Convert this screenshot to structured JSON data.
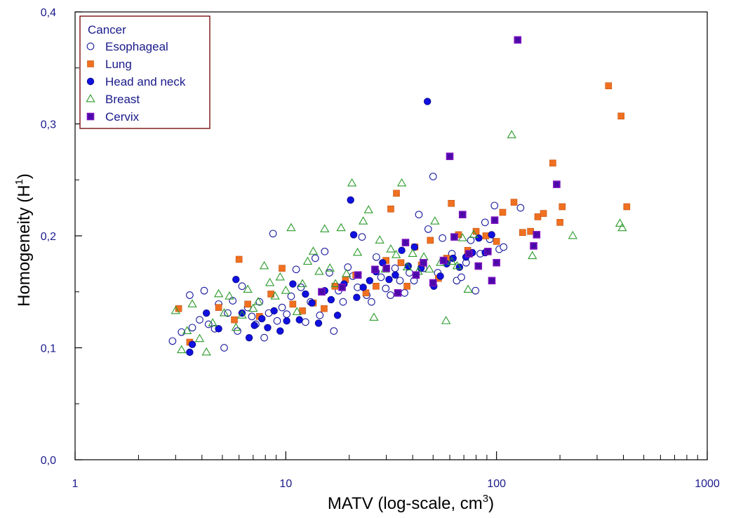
{
  "chart_data": {
    "type": "scatter",
    "xlabel": "MATV (log-scale, cm",
    "xlabel_sup": "3",
    "xlabel_end": ")",
    "ylabel": "Homogeneity (H",
    "ylabel_sup": "1",
    "ylabel_end": ")",
    "x_scale": "log",
    "xlim": [
      1,
      1000
    ],
    "ylim": [
      0,
      0.4
    ],
    "x_ticks": [
      {
        "value": 1,
        "label": "1"
      },
      {
        "value": 10,
        "label": "10"
      },
      {
        "value": 100,
        "label": "100"
      },
      {
        "value": 1000,
        "label": "1000"
      }
    ],
    "y_ticks": [
      {
        "value": 0.0,
        "label": "0,0"
      },
      {
        "value": 0.1,
        "label": "0,1"
      },
      {
        "value": 0.2,
        "label": "0,2"
      },
      {
        "value": 0.3,
        "label": "0,3"
      },
      {
        "value": 0.4,
        "label": "0,4"
      }
    ],
    "grid": false,
    "legend": {
      "title": "Cancer",
      "placement": "top-left"
    },
    "series": [
      {
        "name": "Esophageal",
        "marker": "open-circle",
        "color": "#1a1aa0",
        "points": [
          [
            2.9,
            0.106
          ],
          [
            3.2,
            0.114
          ],
          [
            3.5,
            0.147
          ],
          [
            3.6,
            0.118
          ],
          [
            3.9,
            0.125
          ],
          [
            4.1,
            0.151
          ],
          [
            4.3,
            0.121
          ],
          [
            4.6,
            0.117
          ],
          [
            4.8,
            0.139
          ],
          [
            5.1,
            0.1
          ],
          [
            5.3,
            0.131
          ],
          [
            5.6,
            0.142
          ],
          [
            5.9,
            0.115
          ],
          [
            6.2,
            0.155
          ],
          [
            6.6,
            0.136
          ],
          [
            6.9,
            0.128
          ],
          [
            7.2,
            0.121
          ],
          [
            7.5,
            0.141
          ],
          [
            7.9,
            0.109
          ],
          [
            8.3,
            0.131
          ],
          [
            8.7,
            0.202
          ],
          [
            9.1,
            0.124
          ],
          [
            9.6,
            0.136
          ],
          [
            10.1,
            0.13
          ],
          [
            10.6,
            0.146
          ],
          [
            11.2,
            0.17
          ],
          [
            11.8,
            0.154
          ],
          [
            12.4,
            0.123
          ],
          [
            13.1,
            0.141
          ],
          [
            13.8,
            0.18
          ],
          [
            14.5,
            0.129
          ],
          [
            15.3,
            0.186
          ],
          [
            16.1,
            0.167
          ],
          [
            16.9,
            0.115
          ],
          [
            17.8,
            0.151
          ],
          [
            18.7,
            0.141
          ],
          [
            19.7,
            0.172
          ],
          [
            20.8,
            0.164
          ],
          [
            21.9,
            0.154
          ],
          [
            23.0,
            0.199
          ],
          [
            24.2,
            0.147
          ],
          [
            25.5,
            0.141
          ],
          [
            26.9,
            0.181
          ],
          [
            28.3,
            0.163
          ],
          [
            29.8,
            0.153
          ],
          [
            31.4,
            0.147
          ],
          [
            33.0,
            0.171
          ],
          [
            34.8,
            0.16
          ],
          [
            36.6,
            0.149
          ],
          [
            38.6,
            0.167
          ],
          [
            40.6,
            0.16
          ],
          [
            42.8,
            0.219
          ],
          [
            45.0,
            0.171
          ],
          [
            47.4,
            0.206
          ],
          [
            50.0,
            0.253
          ],
          [
            52.6,
            0.167
          ],
          [
            55.4,
            0.198
          ],
          [
            58.3,
            0.177
          ],
          [
            61.4,
            0.184
          ],
          [
            64.7,
            0.16
          ],
          [
            68.1,
            0.163
          ],
          [
            71.7,
            0.176
          ],
          [
            75.5,
            0.196
          ],
          [
            79.5,
            0.151
          ],
          [
            83.7,
            0.184
          ],
          [
            88.2,
            0.212
          ],
          [
            92.9,
            0.197
          ],
          [
            97.8,
            0.227
          ],
          [
            103,
            0.188
          ],
          [
            108,
            0.19
          ],
          [
            130,
            0.225
          ]
        ]
      },
      {
        "name": "Lung",
        "marker": "filled-square",
        "color": "#f07020",
        "points": [
          [
            3.1,
            0.135
          ],
          [
            3.5,
            0.105
          ],
          [
            4.8,
            0.136
          ],
          [
            5.7,
            0.125
          ],
          [
            6.0,
            0.179
          ],
          [
            6.6,
            0.139
          ],
          [
            7.5,
            0.128
          ],
          [
            8.5,
            0.148
          ],
          [
            9.6,
            0.171
          ],
          [
            10.8,
            0.139
          ],
          [
            12.0,
            0.133
          ],
          [
            13.5,
            0.14
          ],
          [
            15.2,
            0.135
          ],
          [
            17.1,
            0.155
          ],
          [
            19.2,
            0.161
          ],
          [
            21.5,
            0.165
          ],
          [
            24.0,
            0.149
          ],
          [
            26.8,
            0.155
          ],
          [
            29.9,
            0.178
          ],
          [
            31.5,
            0.224
          ],
          [
            33.5,
            0.238
          ],
          [
            35.2,
            0.176
          ],
          [
            37.6,
            0.155
          ],
          [
            41.0,
            0.19
          ],
          [
            44.0,
            0.174
          ],
          [
            48.5,
            0.196
          ],
          [
            53.0,
            0.162
          ],
          [
            58.0,
            0.18
          ],
          [
            61.0,
            0.229
          ],
          [
            66.0,
            0.201
          ],
          [
            73.0,
            0.187
          ],
          [
            80.0,
            0.204
          ],
          [
            89.0,
            0.2
          ],
          [
            100,
            0.195
          ],
          [
            107,
            0.221
          ],
          [
            121,
            0.23
          ],
          [
            133,
            0.203
          ],
          [
            145,
            0.204
          ],
          [
            157,
            0.217
          ],
          [
            167,
            0.22
          ],
          [
            185,
            0.265
          ],
          [
            200,
            0.212
          ],
          [
            205,
            0.226
          ],
          [
            340,
            0.334
          ],
          [
            390,
            0.307
          ],
          [
            415,
            0.226
          ]
        ]
      },
      {
        "name": "Head and neck",
        "marker": "filled-circle",
        "color": "#1010e0",
        "points": [
          [
            3.5,
            0.096
          ],
          [
            3.6,
            0.103
          ],
          [
            4.2,
            0.131
          ],
          [
            4.8,
            0.117
          ],
          [
            5.8,
            0.161
          ],
          [
            6.2,
            0.131
          ],
          [
            6.7,
            0.109
          ],
          [
            7.1,
            0.12
          ],
          [
            7.7,
            0.126
          ],
          [
            8.2,
            0.118
          ],
          [
            8.8,
            0.133
          ],
          [
            9.4,
            0.115
          ],
          [
            10.1,
            0.124
          ],
          [
            10.8,
            0.157
          ],
          [
            11.6,
            0.125
          ],
          [
            12.4,
            0.148
          ],
          [
            13.3,
            0.14
          ],
          [
            14.3,
            0.122
          ],
          [
            15.3,
            0.151
          ],
          [
            16.4,
            0.143
          ],
          [
            17.6,
            0.129
          ],
          [
            18.9,
            0.157
          ],
          [
            20.3,
            0.232
          ],
          [
            21.7,
            0.145
          ],
          [
            21.0,
            0.201
          ],
          [
            23.3,
            0.154
          ],
          [
            25.0,
            0.16
          ],
          [
            26.8,
            0.168
          ],
          [
            28.8,
            0.176
          ],
          [
            30.9,
            0.161
          ],
          [
            33.1,
            0.165
          ],
          [
            35.5,
            0.187
          ],
          [
            38.1,
            0.173
          ],
          [
            40.8,
            0.19
          ],
          [
            43.8,
            0.171
          ],
          [
            47.0,
            0.32
          ],
          [
            50.4,
            0.155
          ],
          [
            54.1,
            0.164
          ],
          [
            58.0,
            0.175
          ],
          [
            62.2,
            0.18
          ],
          [
            66.7,
            0.172
          ],
          [
            71.6,
            0.181
          ],
          [
            76.8,
            0.185
          ],
          [
            82.4,
            0.198
          ],
          [
            88.4,
            0.185
          ],
          [
            94.8,
            0.201
          ]
        ]
      },
      {
        "name": "Breast",
        "marker": "open-triangle",
        "color": "#2a9a2a",
        "points": [
          [
            3.0,
            0.133
          ],
          [
            3.2,
            0.098
          ],
          [
            3.4,
            0.115
          ],
          [
            3.6,
            0.139
          ],
          [
            3.9,
            0.108
          ],
          [
            4.2,
            0.096
          ],
          [
            4.5,
            0.122
          ],
          [
            4.8,
            0.148
          ],
          [
            5.1,
            0.131
          ],
          [
            5.4,
            0.146
          ],
          [
            5.8,
            0.118
          ],
          [
            6.2,
            0.129
          ],
          [
            6.6,
            0.152
          ],
          [
            7.0,
            0.135
          ],
          [
            7.4,
            0.141
          ],
          [
            7.9,
            0.173
          ],
          [
            8.4,
            0.158
          ],
          [
            8.9,
            0.146
          ],
          [
            9.4,
            0.163
          ],
          [
            10.0,
            0.151
          ],
          [
            10.6,
            0.207
          ],
          [
            11.3,
            0.132
          ],
          [
            12.0,
            0.157
          ],
          [
            12.7,
            0.177
          ],
          [
            13.5,
            0.186
          ],
          [
            14.4,
            0.168
          ],
          [
            15.3,
            0.206
          ],
          [
            16.2,
            0.171
          ],
          [
            17.2,
            0.157
          ],
          [
            18.3,
            0.207
          ],
          [
            19.4,
            0.166
          ],
          [
            20.6,
            0.247
          ],
          [
            21.9,
            0.185
          ],
          [
            23.3,
            0.213
          ],
          [
            24.7,
            0.223
          ],
          [
            26.2,
            0.127
          ],
          [
            27.9,
            0.196
          ],
          [
            29.6,
            0.17
          ],
          [
            31.5,
            0.188
          ],
          [
            33.4,
            0.183
          ],
          [
            35.5,
            0.247
          ],
          [
            37.7,
            0.172
          ],
          [
            40.0,
            0.184
          ],
          [
            42.5,
            0.168
          ],
          [
            45.2,
            0.181
          ],
          [
            48.0,
            0.17
          ],
          [
            51.0,
            0.213
          ],
          [
            54.2,
            0.176
          ],
          [
            57.6,
            0.124
          ],
          [
            61.2,
            0.177
          ],
          [
            65.0,
            0.173
          ],
          [
            69.0,
            0.198
          ],
          [
            73.3,
            0.152
          ],
          [
            77.9,
            0.201
          ],
          [
            118,
            0.29
          ],
          [
            148,
            0.182
          ],
          [
            230,
            0.2
          ],
          [
            385,
            0.211
          ],
          [
            395,
            0.207
          ]
        ]
      },
      {
        "name": "Cervix",
        "marker": "filled-square",
        "color": "#4a0aa8",
        "edge": "#7a10c0",
        "points": [
          [
            14.8,
            0.15
          ],
          [
            18.5,
            0.154
          ],
          [
            22.0,
            0.165
          ],
          [
            26.5,
            0.17
          ],
          [
            30.0,
            0.171
          ],
          [
            34.0,
            0.149
          ],
          [
            37.0,
            0.194
          ],
          [
            41.5,
            0.165
          ],
          [
            45.0,
            0.176
          ],
          [
            50.0,
            0.158
          ],
          [
            56.0,
            0.178
          ],
          [
            60.0,
            0.271
          ],
          [
            63.0,
            0.199
          ],
          [
            69.0,
            0.219
          ],
          [
            74.0,
            0.184
          ],
          [
            82.0,
            0.173
          ],
          [
            91.0,
            0.186
          ],
          [
            95.0,
            0.16
          ],
          [
            98.0,
            0.214
          ],
          [
            100,
            0.176
          ],
          [
            126,
            0.375
          ],
          [
            150,
            0.191
          ],
          [
            155,
            0.201
          ],
          [
            193,
            0.246
          ]
        ]
      }
    ]
  }
}
